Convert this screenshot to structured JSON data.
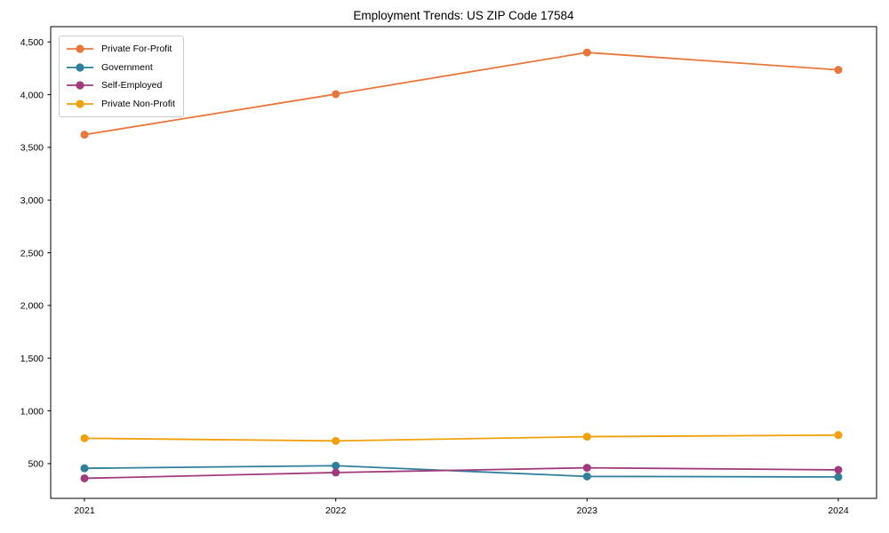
{
  "chart_data": {
    "type": "line",
    "title": "Employment Trends: US ZIP Code 17584",
    "x_labels": [
      "2021",
      "2022",
      "2023",
      "2024"
    ],
    "series": [
      {
        "name": "Private For-Profit",
        "color": "#E8773C",
        "values": [
          3620,
          4005,
          4400,
          4235
        ]
      },
      {
        "name": "Government",
        "color": "#2E7F9C",
        "values": [
          455,
          480,
          378,
          373
        ]
      },
      {
        "name": "Self-Employed",
        "color": "#A23B7E",
        "values": [
          360,
          415,
          460,
          440
        ]
      },
      {
        "name": "Private Non-Profit",
        "color": "#F0A00B",
        "values": [
          740,
          715,
          755,
          770
        ]
      }
    ],
    "yticks": [
      {
        "value": 500,
        "label": "500"
      },
      {
        "value": 1000,
        "label": "1,000"
      },
      {
        "value": 1500,
        "label": "1,500"
      },
      {
        "value": 2000,
        "label": "2,000"
      },
      {
        "value": 2500,
        "label": "2,500"
      },
      {
        "value": 3000,
        "label": "3,000"
      },
      {
        "value": 3500,
        "label": "3,500"
      },
      {
        "value": 4000,
        "label": "4,000"
      },
      {
        "value": 4500,
        "label": "4,500"
      }
    ],
    "ylim": [
      170,
      4645
    ],
    "grid": "off",
    "legend_position": "upper-left",
    "axis_color": "#000000",
    "background_color": "#ffffff"
  }
}
